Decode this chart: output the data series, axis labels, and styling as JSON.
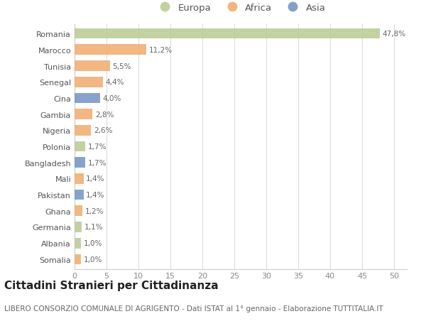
{
  "title": "Cittadini Stranieri per Cittadinanza",
  "subtitle": "LIBERO CONSORZIO COMUNALE DI AGRIGENTO - Dati ISTAT al 1° gennaio - Elaborazione TUTTITALIA.IT",
  "categories": [
    "Romania",
    "Marocco",
    "Tunisia",
    "Senegal",
    "Cina",
    "Gambia",
    "Nigeria",
    "Polonia",
    "Bangladesh",
    "Mali",
    "Pakistan",
    "Ghana",
    "Germania",
    "Albania",
    "Somalia"
  ],
  "values": [
    47.8,
    11.2,
    5.5,
    4.4,
    4.0,
    2.8,
    2.6,
    1.7,
    1.7,
    1.4,
    1.4,
    1.2,
    1.1,
    1.0,
    1.0
  ],
  "labels": [
    "47,8%",
    "11,2%",
    "5,5%",
    "4,4%",
    "4,0%",
    "2,8%",
    "2,6%",
    "1,7%",
    "1,7%",
    "1,4%",
    "1,4%",
    "1,2%",
    "1,1%",
    "1,0%",
    "1,0%"
  ],
  "continents": [
    "Europa",
    "Africa",
    "Africa",
    "Africa",
    "Asia",
    "Africa",
    "Africa",
    "Europa",
    "Asia",
    "Africa",
    "Asia",
    "Africa",
    "Europa",
    "Europa",
    "Africa"
  ],
  "colors": {
    "Europa": "#b5c98e",
    "Africa": "#f0a868",
    "Asia": "#6e8fc0"
  },
  "xlim": [
    0,
    52
  ],
  "xticks": [
    0,
    5,
    10,
    15,
    20,
    25,
    30,
    35,
    40,
    45,
    50
  ],
  "background_color": "#ffffff",
  "grid_color": "#dddddd",
  "bar_height": 0.65,
  "title_fontsize": 11,
  "subtitle_fontsize": 7.5,
  "label_fontsize": 7.5,
  "tick_fontsize": 8,
  "legend_fontsize": 9.5
}
